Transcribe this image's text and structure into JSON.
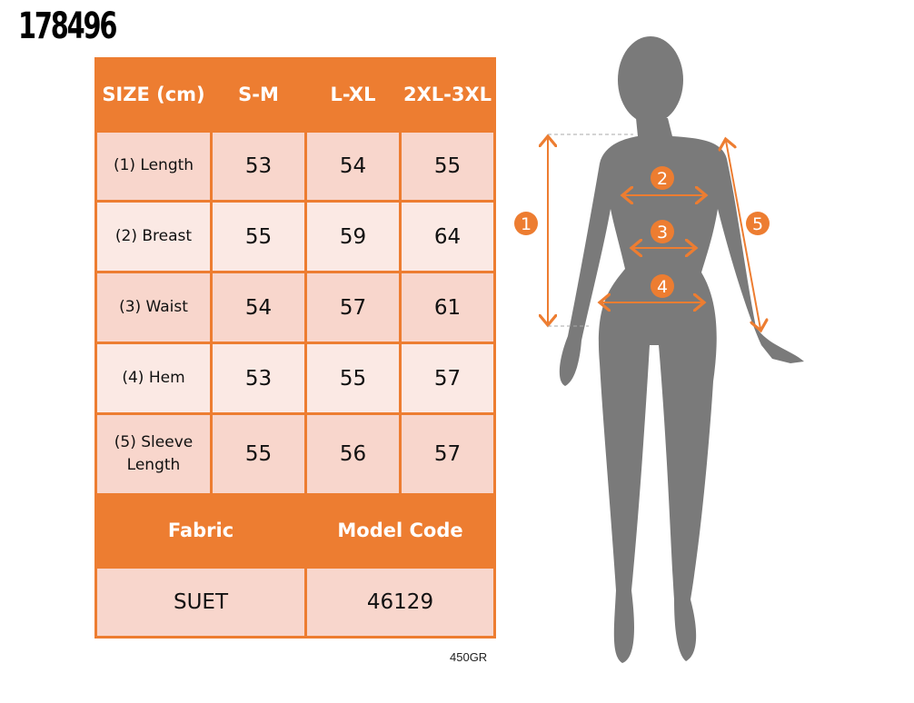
{
  "product_code": "178496",
  "table": {
    "header": [
      "SIZE (cm)",
      "S-M",
      "L-XL",
      "2XL-3XL"
    ],
    "rows": [
      {
        "label": "(1) Length",
        "values": [
          "53",
          "54",
          "55"
        ]
      },
      {
        "label": "(2) Breast",
        "values": [
          "55",
          "59",
          "64"
        ]
      },
      {
        "label": "(3) Waist",
        "values": [
          "54",
          "57",
          "61"
        ]
      },
      {
        "label": "(4) Hem",
        "values": [
          "53",
          "55",
          "57"
        ]
      },
      {
        "label": "(5) Sleeve Length",
        "values": [
          "55",
          "56",
          "57"
        ]
      }
    ],
    "fabric_label": "Fabric",
    "model_code_label": "Model Code",
    "fabric": "SUET",
    "model_code": "46129"
  },
  "weight": "450GR",
  "figure": {
    "markers": [
      "1",
      "2",
      "3",
      "4",
      "5"
    ]
  },
  "colors": {
    "accent": "#ed7d31",
    "row_dark": "#f8d6cc",
    "row_light": "#fbe9e4",
    "silhouette": "#7a7a7a"
  }
}
